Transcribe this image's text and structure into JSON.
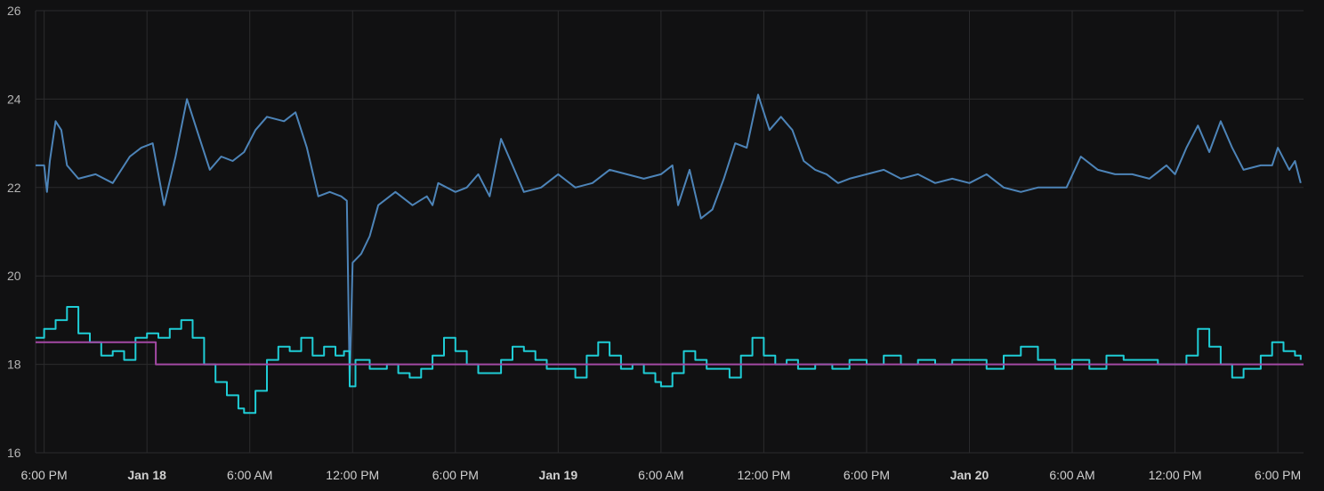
{
  "colors": {
    "background": "#111112",
    "grid": "#2b2b2d",
    "tick_text": "#c8c8c8"
  },
  "chart_data": {
    "type": "line",
    "title": "",
    "xlabel": "",
    "ylabel": "",
    "ylim": [
      16,
      26
    ],
    "yticks": [
      16,
      18,
      20,
      22,
      24,
      26
    ],
    "xlim": [
      "2024-01-17T17:30",
      "2024-01-20T19:30"
    ],
    "grid": true,
    "legend": "none",
    "xticks": [
      {
        "t": "2024-01-17T18:00",
        "label": "6:00 PM",
        "bold": false
      },
      {
        "t": "2024-01-18T00:00",
        "label": "Jan 18",
        "bold": true
      },
      {
        "t": "2024-01-18T06:00",
        "label": "6:00 AM",
        "bold": false
      },
      {
        "t": "2024-01-18T12:00",
        "label": "12:00 PM",
        "bold": false
      },
      {
        "t": "2024-01-18T18:00",
        "label": "6:00 PM",
        "bold": false
      },
      {
        "t": "2024-01-19T00:00",
        "label": "Jan 19",
        "bold": true
      },
      {
        "t": "2024-01-19T06:00",
        "label": "6:00 AM",
        "bold": false
      },
      {
        "t": "2024-01-19T12:00",
        "label": "12:00 PM",
        "bold": false
      },
      {
        "t": "2024-01-19T18:00",
        "label": "6:00 PM",
        "bold": false
      },
      {
        "t": "2024-01-20T00:00",
        "label": "Jan 20",
        "bold": true
      },
      {
        "t": "2024-01-20T06:00",
        "label": "6:00 AM",
        "bold": false
      },
      {
        "t": "2024-01-20T12:00",
        "label": "12:00 PM",
        "bold": false
      },
      {
        "t": "2024-01-20T18:00",
        "label": "6:00 PM",
        "bold": false
      }
    ],
    "series": [
      {
        "color": "#4d84b8",
        "step": false,
        "points": [
          [
            "2024-01-17T17:30",
            22.5
          ],
          [
            "2024-01-17T18:00",
            22.5
          ],
          [
            "2024-01-17T18:10",
            21.9
          ],
          [
            "2024-01-17T18:20",
            22.6
          ],
          [
            "2024-01-17T18:40",
            23.5
          ],
          [
            "2024-01-17T19:00",
            23.3
          ],
          [
            "2024-01-17T19:20",
            22.5
          ],
          [
            "2024-01-17T20:00",
            22.2
          ],
          [
            "2024-01-17T21:00",
            22.3
          ],
          [
            "2024-01-17T22:00",
            22.1
          ],
          [
            "2024-01-17T23:00",
            22.7
          ],
          [
            "2024-01-17T23:40",
            22.9
          ],
          [
            "2024-01-18T00:20",
            23.0
          ],
          [
            "2024-01-18T01:00",
            21.6
          ],
          [
            "2024-01-18T01:40",
            22.7
          ],
          [
            "2024-01-18T02:20",
            24.0
          ],
          [
            "2024-01-18T03:00",
            23.2
          ],
          [
            "2024-01-18T03:40",
            22.4
          ],
          [
            "2024-01-18T04:20",
            22.7
          ],
          [
            "2024-01-18T05:00",
            22.6
          ],
          [
            "2024-01-18T05:40",
            22.8
          ],
          [
            "2024-01-18T06:20",
            23.3
          ],
          [
            "2024-01-18T07:00",
            23.6
          ],
          [
            "2024-01-18T08:00",
            23.5
          ],
          [
            "2024-01-18T08:40",
            23.7
          ],
          [
            "2024-01-18T09:20",
            22.9
          ],
          [
            "2024-01-18T10:00",
            21.8
          ],
          [
            "2024-01-18T10:40",
            21.9
          ],
          [
            "2024-01-18T11:20",
            21.8
          ],
          [
            "2024-01-18T11:40",
            21.7
          ],
          [
            "2024-01-18T11:50",
            17.6
          ],
          [
            "2024-01-18T12:00",
            20.3
          ],
          [
            "2024-01-18T12:30",
            20.5
          ],
          [
            "2024-01-18T13:00",
            20.9
          ],
          [
            "2024-01-18T13:30",
            21.6
          ],
          [
            "2024-01-18T14:30",
            21.9
          ],
          [
            "2024-01-18T15:30",
            21.6
          ],
          [
            "2024-01-18T16:20",
            21.8
          ],
          [
            "2024-01-18T16:40",
            21.6
          ],
          [
            "2024-01-18T17:00",
            22.1
          ],
          [
            "2024-01-18T18:00",
            21.9
          ],
          [
            "2024-01-18T18:40",
            22.0
          ],
          [
            "2024-01-18T19:20",
            22.3
          ],
          [
            "2024-01-18T20:00",
            21.8
          ],
          [
            "2024-01-18T20:40",
            23.1
          ],
          [
            "2024-01-18T21:20",
            22.5
          ],
          [
            "2024-01-18T22:00",
            21.9
          ],
          [
            "2024-01-18T23:00",
            22.0
          ],
          [
            "2024-01-19T00:00",
            22.3
          ],
          [
            "2024-01-19T01:00",
            22.0
          ],
          [
            "2024-01-19T02:00",
            22.1
          ],
          [
            "2024-01-19T03:00",
            22.4
          ],
          [
            "2024-01-19T04:00",
            22.3
          ],
          [
            "2024-01-19T05:00",
            22.2
          ],
          [
            "2024-01-19T06:00",
            22.3
          ],
          [
            "2024-01-19T06:40",
            22.5
          ],
          [
            "2024-01-19T07:00",
            21.6
          ],
          [
            "2024-01-19T07:40",
            22.4
          ],
          [
            "2024-01-19T08:20",
            21.3
          ],
          [
            "2024-01-19T09:00",
            21.5
          ],
          [
            "2024-01-19T09:40",
            22.2
          ],
          [
            "2024-01-19T10:20",
            23.0
          ],
          [
            "2024-01-19T11:00",
            22.9
          ],
          [
            "2024-01-19T11:40",
            24.1
          ],
          [
            "2024-01-19T12:20",
            23.3
          ],
          [
            "2024-01-19T13:00",
            23.6
          ],
          [
            "2024-01-19T13:40",
            23.3
          ],
          [
            "2024-01-19T14:20",
            22.6
          ],
          [
            "2024-01-19T15:00",
            22.4
          ],
          [
            "2024-01-19T15:40",
            22.3
          ],
          [
            "2024-01-19T16:20",
            22.1
          ],
          [
            "2024-01-19T17:00",
            22.2
          ],
          [
            "2024-01-19T18:00",
            22.3
          ],
          [
            "2024-01-19T19:00",
            22.4
          ],
          [
            "2024-01-19T20:00",
            22.2
          ],
          [
            "2024-01-19T21:00",
            22.3
          ],
          [
            "2024-01-19T22:00",
            22.1
          ],
          [
            "2024-01-19T23:00",
            22.2
          ],
          [
            "2024-01-20T00:00",
            22.1
          ],
          [
            "2024-01-20T01:00",
            22.3
          ],
          [
            "2024-01-20T02:00",
            22.0
          ],
          [
            "2024-01-20T03:00",
            21.9
          ],
          [
            "2024-01-20T04:00",
            22.0
          ],
          [
            "2024-01-20T05:00",
            22.0
          ],
          [
            "2024-01-20T05:40",
            22.0
          ],
          [
            "2024-01-20T06:30",
            22.7
          ],
          [
            "2024-01-20T07:30",
            22.4
          ],
          [
            "2024-01-20T08:30",
            22.3
          ],
          [
            "2024-01-20T09:30",
            22.3
          ],
          [
            "2024-01-20T10:30",
            22.2
          ],
          [
            "2024-01-20T11:30",
            22.5
          ],
          [
            "2024-01-20T12:00",
            22.3
          ],
          [
            "2024-01-20T12:40",
            22.9
          ],
          [
            "2024-01-20T13:20",
            23.4
          ],
          [
            "2024-01-20T14:00",
            22.8
          ],
          [
            "2024-01-20T14:40",
            23.5
          ],
          [
            "2024-01-20T15:20",
            22.9
          ],
          [
            "2024-01-20T16:00",
            22.4
          ],
          [
            "2024-01-20T17:00",
            22.5
          ],
          [
            "2024-01-20T17:40",
            22.5
          ],
          [
            "2024-01-20T18:00",
            22.9
          ],
          [
            "2024-01-20T18:40",
            22.4
          ],
          [
            "2024-01-20T19:00",
            22.6
          ],
          [
            "2024-01-20T19:20",
            22.1
          ]
        ]
      },
      {
        "color": "#1fcdd6",
        "step": true,
        "points": [
          [
            "2024-01-17T17:30",
            18.6
          ],
          [
            "2024-01-17T18:00",
            18.8
          ],
          [
            "2024-01-17T18:40",
            19.0
          ],
          [
            "2024-01-17T19:20",
            19.3
          ],
          [
            "2024-01-17T20:00",
            18.7
          ],
          [
            "2024-01-17T20:40",
            18.5
          ],
          [
            "2024-01-17T21:20",
            18.2
          ],
          [
            "2024-01-17T22:00",
            18.3
          ],
          [
            "2024-01-17T22:40",
            18.1
          ],
          [
            "2024-01-17T23:20",
            18.6
          ],
          [
            "2024-01-18T00:00",
            18.7
          ],
          [
            "2024-01-18T00:40",
            18.6
          ],
          [
            "2024-01-18T01:20",
            18.8
          ],
          [
            "2024-01-18T02:00",
            19.0
          ],
          [
            "2024-01-18T02:40",
            18.6
          ],
          [
            "2024-01-18T03:20",
            18.0
          ],
          [
            "2024-01-18T04:00",
            17.6
          ],
          [
            "2024-01-18T04:40",
            17.3
          ],
          [
            "2024-01-18T05:20",
            17.0
          ],
          [
            "2024-01-18T05:40",
            16.9
          ],
          [
            "2024-01-18T06:20",
            17.4
          ],
          [
            "2024-01-18T07:00",
            18.1
          ],
          [
            "2024-01-18T07:40",
            18.4
          ],
          [
            "2024-01-18T08:20",
            18.3
          ],
          [
            "2024-01-18T09:00",
            18.6
          ],
          [
            "2024-01-18T09:40",
            18.2
          ],
          [
            "2024-01-18T10:20",
            18.4
          ],
          [
            "2024-01-18T11:00",
            18.2
          ],
          [
            "2024-01-18T11:30",
            18.3
          ],
          [
            "2024-01-18T11:50",
            17.5
          ],
          [
            "2024-01-18T12:10",
            18.1
          ],
          [
            "2024-01-18T13:00",
            17.9
          ],
          [
            "2024-01-18T14:00",
            18.0
          ],
          [
            "2024-01-18T14:40",
            17.8
          ],
          [
            "2024-01-18T15:20",
            17.7
          ],
          [
            "2024-01-18T16:00",
            17.9
          ],
          [
            "2024-01-18T16:40",
            18.2
          ],
          [
            "2024-01-18T17:20",
            18.6
          ],
          [
            "2024-01-18T18:00",
            18.3
          ],
          [
            "2024-01-18T18:40",
            18.0
          ],
          [
            "2024-01-18T19:20",
            17.8
          ],
          [
            "2024-01-18T20:00",
            17.8
          ],
          [
            "2024-01-18T20:40",
            18.1
          ],
          [
            "2024-01-18T21:20",
            18.4
          ],
          [
            "2024-01-18T22:00",
            18.3
          ],
          [
            "2024-01-18T22:40",
            18.1
          ],
          [
            "2024-01-18T23:20",
            17.9
          ],
          [
            "2024-01-19T00:00",
            17.9
          ],
          [
            "2024-01-19T01:00",
            17.7
          ],
          [
            "2024-01-19T01:40",
            18.2
          ],
          [
            "2024-01-19T02:20",
            18.5
          ],
          [
            "2024-01-19T03:00",
            18.2
          ],
          [
            "2024-01-19T03:40",
            17.9
          ],
          [
            "2024-01-19T04:20",
            18.0
          ],
          [
            "2024-01-19T05:00",
            17.8
          ],
          [
            "2024-01-19T05:40",
            17.6
          ],
          [
            "2024-01-19T06:00",
            17.5
          ],
          [
            "2024-01-19T06:40",
            17.8
          ],
          [
            "2024-01-19T07:20",
            18.3
          ],
          [
            "2024-01-19T08:00",
            18.1
          ],
          [
            "2024-01-19T08:40",
            17.9
          ],
          [
            "2024-01-19T09:20",
            17.9
          ],
          [
            "2024-01-19T10:00",
            17.7
          ],
          [
            "2024-01-19T10:40",
            18.2
          ],
          [
            "2024-01-19T11:20",
            18.6
          ],
          [
            "2024-01-19T12:00",
            18.2
          ],
          [
            "2024-01-19T12:40",
            18.0
          ],
          [
            "2024-01-19T13:20",
            18.1
          ],
          [
            "2024-01-19T14:00",
            17.9
          ],
          [
            "2024-01-19T15:00",
            18.0
          ],
          [
            "2024-01-19T16:00",
            17.9
          ],
          [
            "2024-01-19T17:00",
            18.1
          ],
          [
            "2024-01-19T18:00",
            18.0
          ],
          [
            "2024-01-19T19:00",
            18.2
          ],
          [
            "2024-01-19T20:00",
            18.0
          ],
          [
            "2024-01-19T21:00",
            18.1
          ],
          [
            "2024-01-19T22:00",
            18.0
          ],
          [
            "2024-01-19T23:00",
            18.1
          ],
          [
            "2024-01-20T00:00",
            18.1
          ],
          [
            "2024-01-20T01:00",
            17.9
          ],
          [
            "2024-01-20T02:00",
            18.2
          ],
          [
            "2024-01-20T03:00",
            18.4
          ],
          [
            "2024-01-20T04:00",
            18.1
          ],
          [
            "2024-01-20T05:00",
            17.9
          ],
          [
            "2024-01-20T06:00",
            18.1
          ],
          [
            "2024-01-20T07:00",
            17.9
          ],
          [
            "2024-01-20T08:00",
            18.2
          ],
          [
            "2024-01-20T09:00",
            18.1
          ],
          [
            "2024-01-20T10:00",
            18.1
          ],
          [
            "2024-01-20T11:00",
            18.0
          ],
          [
            "2024-01-20T12:00",
            18.0
          ],
          [
            "2024-01-20T12:40",
            18.2
          ],
          [
            "2024-01-20T13:20",
            18.8
          ],
          [
            "2024-01-20T14:00",
            18.4
          ],
          [
            "2024-01-20T14:40",
            18.0
          ],
          [
            "2024-01-20T15:20",
            17.7
          ],
          [
            "2024-01-20T16:00",
            17.9
          ],
          [
            "2024-01-20T17:00",
            18.2
          ],
          [
            "2024-01-20T17:40",
            18.5
          ],
          [
            "2024-01-20T18:20",
            18.3
          ],
          [
            "2024-01-20T19:00",
            18.2
          ],
          [
            "2024-01-20T19:20",
            18.1
          ]
        ]
      },
      {
        "color": "#a349a4",
        "step": true,
        "points": [
          [
            "2024-01-17T17:30",
            18.5
          ],
          [
            "2024-01-18T00:30",
            18.5
          ],
          [
            "2024-01-18T00:31",
            18.0
          ],
          [
            "2024-01-20T19:30",
            18.0
          ]
        ]
      }
    ]
  }
}
